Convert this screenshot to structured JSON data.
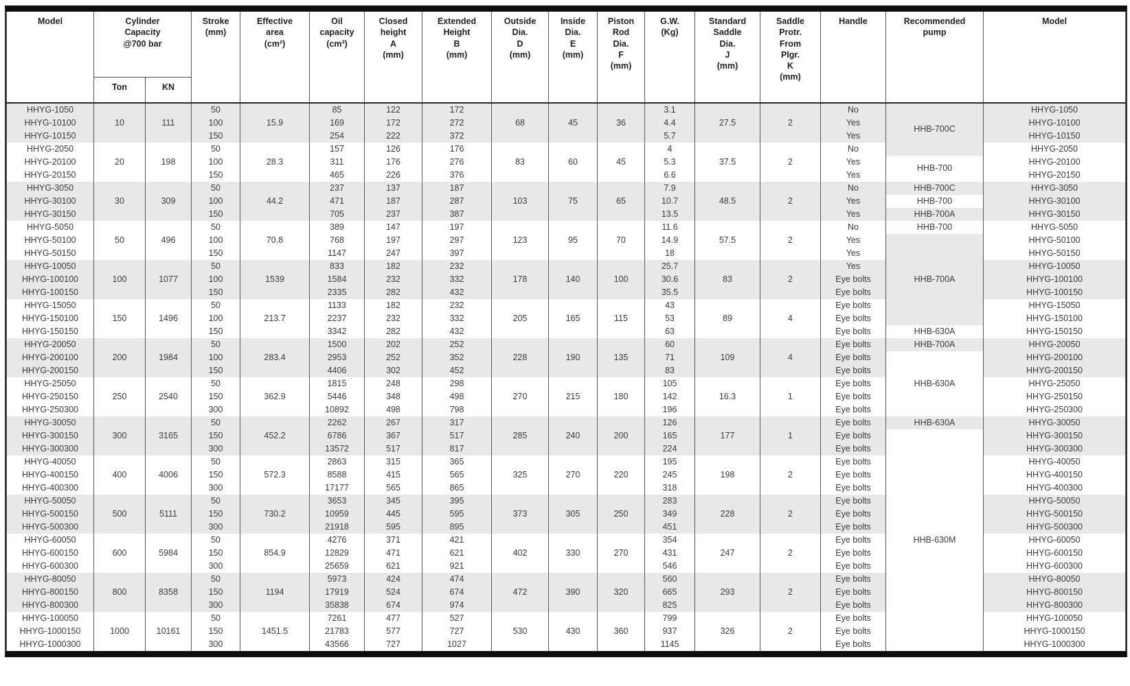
{
  "table": {
    "headers": {
      "model": "Model",
      "capacity_group": "Cylinder\nCapacity\n@700 bar",
      "ton": "Ton",
      "kn": "KN",
      "stroke": "Stroke\n(mm)",
      "area": "Effective\narea\n(cm²)",
      "oil": "Oil\ncapacity\n(cm³)",
      "closed": "Closed\nheight\nA\n(mm)",
      "extended": "Extended\nHeight\nB\n(mm)",
      "outside": "Outside\nDia.\nD\n(mm)",
      "inside": "Inside\nDia.\nE\n(mm)",
      "rod": "Piston\nRod\nDia.\nF\n(mm)",
      "gw": "G.W.\n(Kg)",
      "saddle": "Standard\nSaddle\nDia.\nJ\n(mm)",
      "protr": "Saddle\nProtr.\nFrom\nPlgr.\nK\n(mm)",
      "handle": "Handle",
      "pump": "Recommended\npump",
      "model2": "Model"
    },
    "groups": [
      {
        "ton": "10",
        "kn": "111",
        "area": "15.9",
        "outside_dia": "68",
        "inside_dia": "45",
        "rod_dia": "36",
        "saddle_dia": "27.5",
        "saddle_protr": "2",
        "rows": [
          {
            "model": "HHYG-1050",
            "stroke": "50",
            "oil": "85",
            "closed": "122",
            "extended": "172",
            "gw": "3.1",
            "handle": "No"
          },
          {
            "model": "HHYG-10100",
            "stroke": "100",
            "oil": "169",
            "closed": "172",
            "extended": "272",
            "gw": "4.4",
            "handle": "Yes"
          },
          {
            "model": "HHYG-10150",
            "stroke": "150",
            "oil": "254",
            "closed": "222",
            "extended": "372",
            "gw": "5.7",
            "handle": "Yes"
          }
        ]
      },
      {
        "ton": "20",
        "kn": "198",
        "area": "28.3",
        "outside_dia": "83",
        "inside_dia": "60",
        "rod_dia": "45",
        "saddle_dia": "37.5",
        "saddle_protr": "2",
        "rows": [
          {
            "model": "HHYG-2050",
            "stroke": "50",
            "oil": "157",
            "closed": "126",
            "extended": "176",
            "gw": "4",
            "handle": "No"
          },
          {
            "model": "HHYG-20100",
            "stroke": "100",
            "oil": "311",
            "closed": "176",
            "extended": "276",
            "gw": "5.3",
            "handle": "Yes"
          },
          {
            "model": "HHYG-20150",
            "stroke": "150",
            "oil": "465",
            "closed": "226",
            "extended": "376",
            "gw": "6.6",
            "handle": "Yes"
          }
        ]
      },
      {
        "ton": "30",
        "kn": "309",
        "area": "44.2",
        "outside_dia": "103",
        "inside_dia": "75",
        "rod_dia": "65",
        "saddle_dia": "48.5",
        "saddle_protr": "2",
        "rows": [
          {
            "model": "HHYG-3050",
            "stroke": "50",
            "oil": "237",
            "closed": "137",
            "extended": "187",
            "gw": "7.9",
            "handle": "No"
          },
          {
            "model": "HHYG-30100",
            "stroke": "100",
            "oil": "471",
            "closed": "187",
            "extended": "287",
            "gw": "10.7",
            "handle": "Yes"
          },
          {
            "model": "HHYG-30150",
            "stroke": "150",
            "oil": "705",
            "closed": "237",
            "extended": "387",
            "gw": "13.5",
            "handle": "Yes"
          }
        ]
      },
      {
        "ton": "50",
        "kn": "496",
        "area": "70.8",
        "outside_dia": "123",
        "inside_dia": "95",
        "rod_dia": "70",
        "saddle_dia": "57.5",
        "saddle_protr": "2",
        "rows": [
          {
            "model": "HHYG-5050",
            "stroke": "50",
            "oil": "389",
            "closed": "147",
            "extended": "197",
            "gw": "11.6",
            "handle": "No"
          },
          {
            "model": "HHYG-50100",
            "stroke": "100",
            "oil": "768",
            "closed": "197",
            "extended": "297",
            "gw": "14.9",
            "handle": "Yes"
          },
          {
            "model": "HHYG-50150",
            "stroke": "150",
            "oil": "1147",
            "closed": "247",
            "extended": "397",
            "gw": "18",
            "handle": "Yes"
          }
        ]
      },
      {
        "ton": "100",
        "kn": "1077",
        "area": "1539",
        "outside_dia": "178",
        "inside_dia": "140",
        "rod_dia": "100",
        "saddle_dia": "83",
        "saddle_protr": "2",
        "rows": [
          {
            "model": "HHYG-10050",
            "stroke": "50",
            "oil": "833",
            "closed": "182",
            "extended": "232",
            "gw": "25.7",
            "handle": "Yes"
          },
          {
            "model": "HHYG-100100",
            "stroke": "100",
            "oil": "1584",
            "closed": "232",
            "extended": "332",
            "gw": "30.6",
            "handle": "Eye bolts"
          },
          {
            "model": "HHYG-100150",
            "stroke": "150",
            "oil": "2335",
            "closed": "282",
            "extended": "432",
            "gw": "35.5",
            "handle": "Eye bolts"
          }
        ]
      },
      {
        "ton": "150",
        "kn": "1496",
        "area": "213.7",
        "outside_dia": "205",
        "inside_dia": "165",
        "rod_dia": "115",
        "saddle_dia": "89",
        "saddle_protr": "4",
        "rows": [
          {
            "model": "HHYG-15050",
            "stroke": "50",
            "oil": "1133",
            "closed": "182",
            "extended": "232",
            "gw": "43",
            "handle": "Eye bolts"
          },
          {
            "model": "HHYG-150100",
            "stroke": "100",
            "oil": "2237",
            "closed": "232",
            "extended": "332",
            "gw": "53",
            "handle": "Eye bolts"
          },
          {
            "model": "HHYG-150150",
            "stroke": "150",
            "oil": "3342",
            "closed": "282",
            "extended": "432",
            "gw": "63",
            "handle": "Eye bolts"
          }
        ]
      },
      {
        "ton": "200",
        "kn": "1984",
        "area": "283.4",
        "outside_dia": "228",
        "inside_dia": "190",
        "rod_dia": "135",
        "saddle_dia": "109",
        "saddle_protr": "4",
        "rows": [
          {
            "model": "HHYG-20050",
            "stroke": "50",
            "oil": "1500",
            "closed": "202",
            "extended": "252",
            "gw": "60",
            "handle": "Eye bolts"
          },
          {
            "model": "HHYG-200100",
            "stroke": "100",
            "oil": "2953",
            "closed": "252",
            "extended": "352",
            "gw": "71",
            "handle": "Eye bolts"
          },
          {
            "model": "HHYG-200150",
            "stroke": "150",
            "oil": "4406",
            "closed": "302",
            "extended": "452",
            "gw": "83",
            "handle": "Eye bolts"
          }
        ]
      },
      {
        "ton": "250",
        "kn": "2540",
        "area": "362.9",
        "outside_dia": "270",
        "inside_dia": "215",
        "rod_dia": "180",
        "saddle_dia": "16.3",
        "saddle_protr": "1",
        "rows": [
          {
            "model": "HHYG-25050",
            "stroke": "50",
            "oil": "1815",
            "closed": "248",
            "extended": "298",
            "gw": "105",
            "handle": "Eye bolts"
          },
          {
            "model": "HHYG-250150",
            "stroke": "150",
            "oil": "5446",
            "closed": "348",
            "extended": "498",
            "gw": "142",
            "handle": "Eye bolts"
          },
          {
            "model": "HHYG-250300",
            "stroke": "300",
            "oil": "10892",
            "closed": "498",
            "extended": "798",
            "gw": "196",
            "handle": "Eye bolts"
          }
        ]
      },
      {
        "ton": "300",
        "kn": "3165",
        "area": "452.2",
        "outside_dia": "285",
        "inside_dia": "240",
        "rod_dia": "200",
        "saddle_dia": "177",
        "saddle_protr": "1",
        "rows": [
          {
            "model": "HHYG-30050",
            "stroke": "50",
            "oil": "2262",
            "closed": "267",
            "extended": "317",
            "gw": "126",
            "handle": "Eye bolts"
          },
          {
            "model": "HHYG-300150",
            "stroke": "150",
            "oil": "6786",
            "closed": "367",
            "extended": "517",
            "gw": "165",
            "handle": "Eye bolts"
          },
          {
            "model": "HHYG-300300",
            "stroke": "300",
            "oil": "13572",
            "closed": "517",
            "extended": "817",
            "gw": "224",
            "handle": "Eye bolts"
          }
        ]
      },
      {
        "ton": "400",
        "kn": "4006",
        "area": "572.3",
        "outside_dia": "325",
        "inside_dia": "270",
        "rod_dia": "220",
        "saddle_dia": "198",
        "saddle_protr": "2",
        "rows": [
          {
            "model": "HHYG-40050",
            "stroke": "50",
            "oil": "2863",
            "closed": "315",
            "extended": "365",
            "gw": "195",
            "handle": "Eye bolts"
          },
          {
            "model": "HHYG-400150",
            "stroke": "150",
            "oil": "8588",
            "closed": "415",
            "extended": "565",
            "gw": "245",
            "handle": "Eye bolts"
          },
          {
            "model": "HHYG-400300",
            "stroke": "300",
            "oil": "17177",
            "closed": "565",
            "extended": "865",
            "gw": "318",
            "handle": "Eye bolts"
          }
        ]
      },
      {
        "ton": "500",
        "kn": "5111",
        "area": "730.2",
        "outside_dia": "373",
        "inside_dia": "305",
        "rod_dia": "250",
        "saddle_dia": "228",
        "saddle_protr": "2",
        "rows": [
          {
            "model": "HHYG-50050",
            "stroke": "50",
            "oil": "3653",
            "closed": "345",
            "extended": "395",
            "gw": "283",
            "handle": "Eye bolts"
          },
          {
            "model": "HHYG-500150",
            "stroke": "150",
            "oil": "10959",
            "closed": "445",
            "extended": "595",
            "gw": "349",
            "handle": "Eye bolts"
          },
          {
            "model": "HHYG-500300",
            "stroke": "300",
            "oil": "21918",
            "closed": "595",
            "extended": "895",
            "gw": "451",
            "handle": "Eye bolts"
          }
        ]
      },
      {
        "ton": "600",
        "kn": "5984",
        "area": "854.9",
        "outside_dia": "402",
        "inside_dia": "330",
        "rod_dia": "270",
        "saddle_dia": "247",
        "saddle_protr": "2",
        "rows": [
          {
            "model": "HHYG-60050",
            "stroke": "50",
            "oil": "4276",
            "closed": "371",
            "extended": "421",
            "gw": "354",
            "handle": "Eye bolts"
          },
          {
            "model": "HHYG-600150",
            "stroke": "150",
            "oil": "12829",
            "closed": "471",
            "extended": "621",
            "gw": "431",
            "handle": "Eye bolts"
          },
          {
            "model": "HHYG-600300",
            "stroke": "300",
            "oil": "25659",
            "closed": "621",
            "extended": "921",
            "gw": "546",
            "handle": "Eye bolts"
          }
        ]
      },
      {
        "ton": "800",
        "kn": "8358",
        "area": "1194",
        "outside_dia": "472",
        "inside_dia": "390",
        "rod_dia": "320",
        "saddle_dia": "293",
        "saddle_protr": "2",
        "rows": [
          {
            "model": "HHYG-80050",
            "stroke": "50",
            "oil": "5973",
            "closed": "424",
            "extended": "474",
            "gw": "560",
            "handle": "Eye bolts"
          },
          {
            "model": "HHYG-800150",
            "stroke": "150",
            "oil": "17919",
            "closed": "524",
            "extended": "674",
            "gw": "665",
            "handle": "Eye bolts"
          },
          {
            "model": "HHYG-800300",
            "stroke": "300",
            "oil": "35838",
            "closed": "674",
            "extended": "974",
            "gw": "825",
            "handle": "Eye bolts"
          }
        ]
      },
      {
        "ton": "1000",
        "kn": "10161",
        "area": "1451.5",
        "outside_dia": "530",
        "inside_dia": "430",
        "rod_dia": "360",
        "saddle_dia": "326",
        "saddle_protr": "2",
        "rows": [
          {
            "model": "HHYG-100050",
            "stroke": "50",
            "oil": "7261",
            "closed": "477",
            "extended": "527",
            "gw": "799",
            "handle": "Eye bolts"
          },
          {
            "model": "HHYG-1000150",
            "stroke": "150",
            "oil": "21783",
            "closed": "577",
            "extended": "727",
            "gw": "937",
            "handle": "Eye bolts"
          },
          {
            "model": "HHYG-1000300",
            "stroke": "300",
            "oil": "43566",
            "closed": "727",
            "extended": "1027",
            "gw": "1145",
            "handle": "Eye bolts"
          }
        ]
      }
    ],
    "pump_spans": [
      {
        "label": "HHB-700C",
        "start": 0,
        "span": 4,
        "shaded": true
      },
      {
        "label": "HHB-700",
        "start": 4,
        "span": 2,
        "shaded": false
      },
      {
        "label": "HHB-700C",
        "start": 6,
        "span": 1,
        "shaded": true
      },
      {
        "label": "HHB-700",
        "start": 7,
        "span": 1,
        "shaded": false
      },
      {
        "label": "HHB-700A",
        "start": 8,
        "span": 1,
        "shaded": true
      },
      {
        "label": "HHB-700",
        "start": 9,
        "span": 1,
        "shaded": false
      },
      {
        "label": "HHB-700A",
        "start": 10,
        "span": 7,
        "shaded": true
      },
      {
        "label": "HHB-630A",
        "start": 17,
        "span": 1,
        "shaded": false
      },
      {
        "label": "HHB-700A",
        "start": 18,
        "span": 1,
        "shaded": true
      },
      {
        "label": "HHB-630A",
        "start": 19,
        "span": 5,
        "shaded": false
      },
      {
        "label": "HHB-630A",
        "start": 24,
        "span": 1,
        "shaded": true
      },
      {
        "label": "HHB-630M",
        "start": 25,
        "span": 17,
        "shaded": false
      }
    ],
    "colors": {
      "row_shade": "#e8e8e8",
      "grid_line": "#565656",
      "frame": "#0e0e0e",
      "text": "#3a3a3a"
    }
  }
}
